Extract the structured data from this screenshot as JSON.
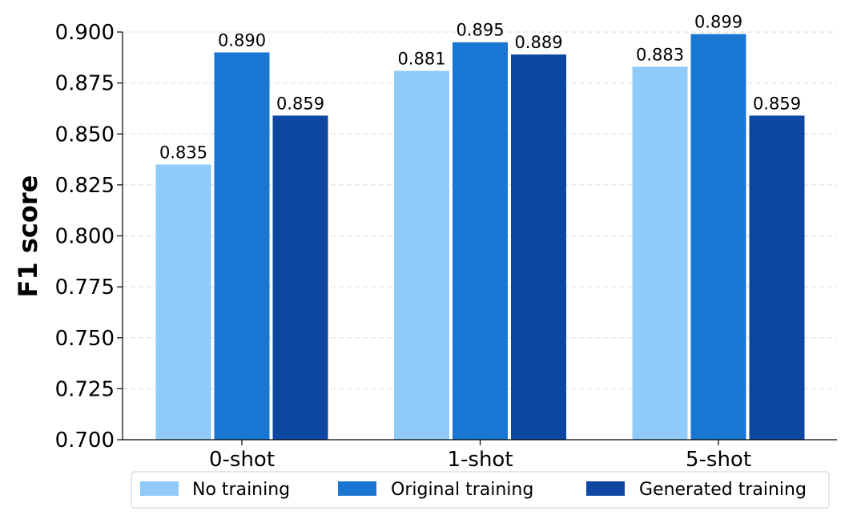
{
  "chart_data": {
    "type": "bar",
    "title": "",
    "xlabel": "",
    "ylabel": "F1 score",
    "ylim": [
      0.7,
      0.9
    ],
    "yticks": [
      "0.700",
      "0.725",
      "0.750",
      "0.775",
      "0.800",
      "0.825",
      "0.850",
      "0.875",
      "0.900"
    ],
    "categories": [
      "0-shot",
      "1-shot",
      "5-shot"
    ],
    "series": [
      {
        "name": "No training",
        "color": "#90CAF9",
        "values": [
          0.835,
          0.881,
          0.883
        ],
        "labels": [
          "0.835",
          "0.881",
          "0.883"
        ]
      },
      {
        "name": "Original training",
        "color": "#1976D2",
        "values": [
          0.89,
          0.895,
          0.899
        ],
        "labels": [
          "0.890",
          "0.895",
          "0.899"
        ]
      },
      {
        "name": "Generated training",
        "color": "#0D47A1",
        "values": [
          0.859,
          0.889,
          0.859
        ],
        "labels": [
          "0.859",
          "0.889",
          "0.859"
        ]
      }
    ],
    "grid": "horizontal dashed",
    "legend_position": "bottom"
  }
}
